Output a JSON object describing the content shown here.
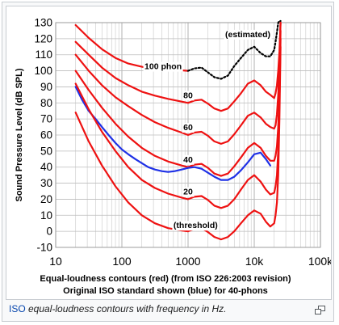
{
  "caption": {
    "link_text": "ISO",
    "rest_text": " equal-loudness contours with frequency in Hz."
  },
  "icons": {
    "enlarge": "magnify-clip-icon"
  },
  "colors": {
    "iso_226_2003": "#ee1111",
    "original_iso_40_phon": "#1f31e6",
    "estimated": "#000000",
    "caption_link": "#0645ad"
  },
  "chart_data": {
    "type": "line",
    "xscale": "log",
    "xlim": [
      10,
      100000
    ],
    "ylim": [
      -10,
      130
    ],
    "grid": true,
    "ylabel": "Sound Pressure Level (dB SPL)",
    "xlabel_lines": [
      "Equal-loudness contours (red) (from ISO 226:2003 revision)",
      "Original ISO standard shown (blue) for 40-phons"
    ],
    "x_ticks": [
      {
        "value": 10,
        "label": "10"
      },
      {
        "value": 100,
        "label": "100"
      },
      {
        "value": 1000,
        "label": "1000"
      },
      {
        "value": 10000,
        "label": "10k"
      },
      {
        "value": 100000,
        "label": "100k"
      }
    ],
    "y_ticks": [
      130,
      120,
      110,
      100,
      90,
      80,
      70,
      60,
      50,
      40,
      30,
      20,
      10,
      0,
      -10
    ],
    "annotations": [
      {
        "text": "(estimated)",
        "x": 8000,
        "y": 123
      },
      {
        "text": "100 phon",
        "x": 420,
        "y": 103
      },
      {
        "text": "80",
        "x": 1000,
        "y": 85
      },
      {
        "text": "60",
        "x": 1000,
        "y": 65
      },
      {
        "text": "40",
        "x": 1000,
        "y": 45
      },
      {
        "text": "20",
        "x": 1000,
        "y": 25
      },
      {
        "text": "(threshold)",
        "x": 1300,
        "y": 4
      }
    ],
    "series": [
      {
        "phon": 100,
        "color": "red",
        "dash": false,
        "x": [
          20,
          31.5,
          50,
          80,
          125,
          200,
          315,
          500,
          800,
          1000
        ],
        "y": [
          128.5,
          120.5,
          113.5,
          108,
          104.5,
          102.5,
          101,
          100.5,
          100.3,
          100
        ]
      },
      {
        "phon": 100,
        "color": "black",
        "dash": true,
        "x": [
          1000,
          1250,
          1600,
          2000,
          2500,
          3150,
          4000,
          5000,
          6300,
          8000,
          10000,
          12500,
          15000,
          17500,
          20000,
          21000,
          22000,
          22500,
          23000,
          24000,
          25000
        ],
        "y": [
          100,
          101.5,
          102,
          99,
          96,
          95,
          97,
          103,
          108,
          113,
          115,
          111,
          109,
          109,
          113,
          118,
          124,
          127,
          130,
          131,
          132
        ]
      },
      {
        "phon": 80,
        "color": "red",
        "dash": false,
        "x": [
          20,
          31.5,
          50,
          80,
          125,
          200,
          315,
          500,
          800,
          1000,
          1250,
          1600,
          2000,
          2500,
          3150,
          4000,
          5000,
          6300,
          8000,
          10000,
          12500,
          15000,
          17500,
          20000,
          21000,
          22000,
          23000,
          24000,
          25000
        ],
        "y": [
          118,
          110,
          102,
          95.5,
          91,
          87,
          84.5,
          82.5,
          80.8,
          80,
          81.5,
          82,
          79.5,
          76.5,
          75,
          76.5,
          81,
          86,
          92,
          94,
          91,
          87,
          85,
          83,
          86,
          91,
          100,
          112,
          130
        ]
      },
      {
        "phon": 60,
        "color": "red",
        "dash": false,
        "x": [
          20,
          31.5,
          50,
          80,
          125,
          200,
          315,
          500,
          800,
          1000,
          1250,
          1600,
          2000,
          2500,
          3150,
          4000,
          5000,
          6300,
          8000,
          10000,
          12500,
          15000,
          17500,
          20000,
          21000,
          22000,
          23000,
          24000,
          25000
        ],
        "y": [
          110,
          100,
          91,
          83.5,
          78,
          72.5,
          68,
          64.5,
          61.5,
          60,
          61.5,
          62,
          59.5,
          56,
          54.5,
          56,
          60.5,
          66,
          72,
          74,
          71,
          67,
          65,
          64,
          66,
          73,
          85,
          105,
          130
        ]
      },
      {
        "phon": 40,
        "color": "red",
        "dash": false,
        "x": [
          20,
          31.5,
          50,
          80,
          125,
          200,
          315,
          500,
          800,
          1000,
          1250,
          1600,
          2000,
          2500,
          3150,
          4000,
          5000,
          6300,
          8000,
          10000,
          12500,
          15000,
          17500,
          20000,
          21000,
          22000,
          23000,
          24000,
          25000
        ],
        "y": [
          100,
          88,
          77,
          67,
          59,
          52,
          47,
          43.5,
          41,
          40,
          41.5,
          42,
          39.5,
          36,
          34.5,
          36,
          40.5,
          46,
          52,
          55,
          52,
          47,
          44,
          44,
          47,
          53,
          65,
          88,
          125
        ]
      },
      {
        "phon": 40,
        "color": "blue",
        "dash": false,
        "name": "original ISO 40-phon",
        "x": [
          20,
          25,
          31.5,
          40,
          50,
          63,
          80,
          100,
          125,
          160,
          200,
          250,
          315,
          400,
          500,
          630,
          800,
          1000,
          1250,
          1600,
          2000,
          2500,
          3150,
          4000,
          5000,
          6300,
          8000,
          10000,
          12500,
          15000,
          17500
        ],
        "y": [
          90,
          82,
          75,
          70,
          65,
          60,
          55,
          51,
          48,
          45,
          42.5,
          40,
          38.5,
          37.5,
          37,
          37.5,
          38.5,
          39.5,
          40,
          39,
          36.5,
          34,
          32,
          32,
          34,
          38,
          43,
          48,
          49,
          45,
          41
        ]
      },
      {
        "phon": 20,
        "color": "red",
        "dash": false,
        "x": [
          20,
          31.5,
          50,
          80,
          125,
          200,
          315,
          500,
          800,
          1000,
          1250,
          1600,
          2000,
          2500,
          3150,
          4000,
          5000,
          6300,
          8000,
          10000,
          12500,
          15000,
          17500,
          20000,
          21000,
          22000,
          23000,
          24000,
          25000
        ],
        "y": [
          92,
          76,
          62,
          50,
          40,
          32,
          27,
          23.5,
          21,
          20,
          21.5,
          22,
          19.5,
          16,
          14.5,
          16,
          20,
          26,
          32,
          35,
          31,
          26,
          23,
          24,
          28,
          35,
          50,
          80,
          120
        ]
      },
      {
        "phon": 0,
        "color": "red",
        "dash": false,
        "name": "threshold",
        "x": [
          20,
          31.5,
          50,
          80,
          125,
          200,
          315,
          500,
          800,
          1000,
          1250,
          1600,
          2000,
          2500,
          3150,
          4000,
          5000,
          6300,
          8000,
          10000,
          12500,
          15000,
          17500,
          20000,
          21000,
          22000,
          23000,
          24000,
          25000
        ],
        "y": [
          74,
          56,
          41,
          28,
          18,
          10,
          5,
          2,
          0.5,
          0,
          1.5,
          2,
          -0.5,
          -3.5,
          -5,
          -3.5,
          0,
          5,
          10,
          13,
          11,
          6,
          3,
          5,
          10,
          18,
          35,
          70,
          115
        ]
      }
    ]
  }
}
